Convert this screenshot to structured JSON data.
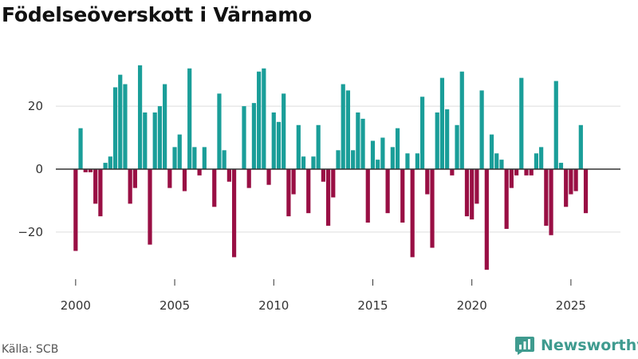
{
  "title": "Födelseöverskott i Värnamo",
  "source": "Källa: SCB",
  "brand": {
    "name": "Newsworthy",
    "icon": "newsworthy-logo-icon"
  },
  "colors": {
    "positive": "#1a9e99",
    "negative": "#990f44",
    "grid": "#dddddd",
    "zero": "#333333",
    "tick": "#333333"
  },
  "chart_data": {
    "type": "bar",
    "title": "Födelseöverskott i Värnamo",
    "xlabel": "",
    "ylabel": "",
    "xlim": [
      1999,
      2027.5
    ],
    "ylim": [
      -35,
      36
    ],
    "y_ticks": [
      20,
      0,
      -20
    ],
    "x_ticks": [
      2000,
      2005,
      2010,
      2015,
      2020,
      2025
    ],
    "series": [
      {
        "name": "Födelseöverskott",
        "x": [
          2000.0,
          2000.25,
          2000.5,
          2000.75,
          2001.0,
          2001.25,
          2001.5,
          2001.75,
          2002.0,
          2002.25,
          2002.5,
          2002.75,
          2003.0,
          2003.25,
          2003.5,
          2003.75,
          2004.0,
          2004.25,
          2004.5,
          2004.75,
          2005.0,
          2005.25,
          2005.5,
          2005.75,
          2006.0,
          2006.25,
          2006.5,
          2006.75,
          2007.0,
          2007.25,
          2007.5,
          2007.75,
          2008.0,
          2008.25,
          2008.5,
          2008.75,
          2009.0,
          2009.25,
          2009.5,
          2009.75,
          2010.0,
          2010.25,
          2010.5,
          2010.75,
          2011.0,
          2011.25,
          2011.5,
          2011.75,
          2012.0,
          2012.25,
          2012.5,
          2012.75,
          2013.0,
          2013.25,
          2013.5,
          2013.75,
          2014.0,
          2014.25,
          2014.5,
          2014.75,
          2015.0,
          2015.25,
          2015.5,
          2015.75,
          2016.0,
          2016.25,
          2016.5,
          2016.75,
          2017.0,
          2017.25,
          2017.5,
          2017.75,
          2018.0,
          2018.25,
          2018.5,
          2018.75,
          2019.0,
          2019.25,
          2019.5,
          2019.75,
          2020.0,
          2020.25,
          2020.5,
          2020.75,
          2021.0,
          2021.25,
          2021.5,
          2021.75,
          2022.0,
          2022.25,
          2022.5,
          2022.75,
          2023.0,
          2023.25,
          2023.5,
          2023.75,
          2024.0,
          2024.25,
          2024.5,
          2024.75,
          2025.0,
          2025.25,
          2025.5,
          2025.75
        ],
        "values": [
          -26,
          13,
          -1,
          -1,
          -11,
          -15,
          2,
          4,
          26,
          30,
          27,
          -11,
          -6,
          33,
          18,
          -24,
          18,
          20,
          27,
          -6,
          7,
          11,
          -7,
          32,
          7,
          -2,
          7,
          0,
          -12,
          24,
          6,
          -4,
          -28,
          0,
          20,
          -6,
          21,
          31,
          32,
          -5,
          18,
          15,
          24,
          -15,
          -8,
          14,
          4,
          -14,
          4,
          14,
          -4,
          -18,
          -9,
          6,
          27,
          25,
          6,
          18,
          16,
          -17,
          9,
          3,
          10,
          -14,
          7,
          13,
          -17,
          5,
          -28,
          5,
          23,
          -8,
          -25,
          18,
          29,
          19,
          -2,
          14,
          31,
          -15,
          -16,
          -11,
          25,
          -32,
          11,
          5,
          3,
          -19,
          -6,
          -2,
          29,
          -2,
          -2,
          5,
          7,
          -18,
          -21,
          28,
          2,
          -12,
          -8,
          -7,
          14,
          -14
        ]
      }
    ]
  }
}
